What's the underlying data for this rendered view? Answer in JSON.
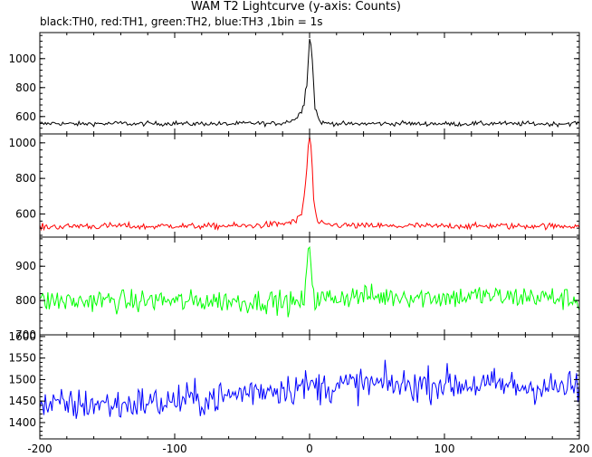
{
  "chart_data": {
    "title": "WAM T2 Lightcurve (y-axis: Counts)",
    "subtitle": "black:TH0, red:TH1, green:TH2, blue:TH3 ,1bin = 1s",
    "type": "line",
    "xlim": [
      -200,
      200
    ],
    "xticks": [
      -200,
      -100,
      0,
      100,
      200
    ],
    "panels": [
      {
        "series": "TH0",
        "color": "#000000",
        "ylim": [
          480,
          1180
        ],
        "yticks": [
          600,
          800,
          1000
        ],
        "x": [
          -200,
          -190,
          -180,
          -170,
          -160,
          -150,
          -140,
          -130,
          -120,
          -110,
          -100,
          -90,
          -80,
          -70,
          -60,
          -50,
          -40,
          -30,
          -20,
          -10,
          -6,
          -4,
          -2,
          -1,
          0,
          1,
          2,
          3,
          4,
          6,
          8,
          10,
          20,
          30,
          40,
          50,
          60,
          70,
          80,
          90,
          100,
          110,
          120,
          130,
          140,
          150,
          160,
          170,
          180,
          190,
          200
        ],
        "y": [
          545,
          555,
          550,
          548,
          552,
          550,
          555,
          548,
          552,
          550,
          555,
          548,
          552,
          550,
          548,
          552,
          555,
          550,
          555,
          585,
          640,
          720,
          820,
          1000,
          1160,
          1100,
          980,
          820,
          680,
          600,
          565,
          555,
          552,
          548,
          550,
          552,
          550,
          555,
          548,
          552,
          550,
          548,
          552,
          550,
          555,
          548,
          552,
          550,
          548,
          552,
          555
        ]
      },
      {
        "series": "TH1",
        "color": "#ff0000",
        "ylim": [
          470,
          1050
        ],
        "yticks": [
          600,
          800,
          1000
        ],
        "x": [
          -200,
          -190,
          -180,
          -170,
          -160,
          -150,
          -140,
          -130,
          -120,
          -110,
          -100,
          -90,
          -80,
          -70,
          -60,
          -50,
          -40,
          -30,
          -20,
          -10,
          -6,
          -4,
          -2,
          -1,
          0,
          1,
          2,
          3,
          4,
          6,
          8,
          10,
          20,
          30,
          40,
          50,
          60,
          70,
          80,
          90,
          100,
          110,
          120,
          130,
          140,
          150,
          160,
          170,
          180,
          190,
          200
        ],
        "y": [
          525,
          530,
          528,
          535,
          530,
          532,
          535,
          530,
          528,
          532,
          535,
          530,
          532,
          530,
          535,
          532,
          535,
          540,
          545,
          560,
          600,
          700,
          850,
          980,
          1040,
          960,
          850,
          700,
          600,
          560,
          545,
          540,
          538,
          535,
          532,
          535,
          530,
          532,
          535,
          530,
          532,
          535,
          530,
          532,
          535,
          530,
          532,
          535,
          530,
          532,
          535
        ]
      },
      {
        "series": "TH2",
        "color": "#00ff00",
        "ylim": [
          700,
          985
        ],
        "yticks": [
          700,
          800,
          900
        ],
        "x": [
          -200,
          -190,
          -180,
          -170,
          -160,
          -150,
          -140,
          -130,
          -120,
          -110,
          -100,
          -90,
          -80,
          -70,
          -60,
          -50,
          -40,
          -30,
          -20,
          -10,
          -4,
          -2,
          -1,
          0,
          1,
          2,
          4,
          10,
          20,
          30,
          40,
          50,
          60,
          70,
          80,
          90,
          100,
          110,
          120,
          130,
          140,
          150,
          160,
          170,
          180,
          190,
          200
        ],
        "y": [
          795,
          800,
          798,
          795,
          802,
          800,
          798,
          795,
          800,
          802,
          798,
          795,
          800,
          798,
          800,
          795,
          798,
          800,
          795,
          790,
          800,
          870,
          940,
          970,
          920,
          860,
          800,
          805,
          810,
          812,
          815,
          810,
          812,
          815,
          810,
          812,
          808,
          810,
          812,
          815,
          810,
          808,
          812,
          810,
          808,
          805,
          800
        ]
      },
      {
        "series": "TH3",
        "color": "#0000ff",
        "ylim": [
          1362,
          1604
        ],
        "yticks": [
          1400,
          1450,
          1500,
          1550,
          1600
        ],
        "x": [
          -200,
          -190,
          -180,
          -170,
          -160,
          -150,
          -140,
          -130,
          -120,
          -110,
          -100,
          -90,
          -80,
          -70,
          -60,
          -50,
          -40,
          -30,
          -20,
          -10,
          0,
          10,
          20,
          30,
          40,
          50,
          60,
          70,
          80,
          90,
          100,
          110,
          120,
          130,
          140,
          150,
          160,
          170,
          180,
          190,
          200
        ],
        "y": [
          1440,
          1438,
          1442,
          1440,
          1445,
          1442,
          1440,
          1445,
          1448,
          1445,
          1450,
          1455,
          1452,
          1458,
          1460,
          1470,
          1475,
          1478,
          1480,
          1482,
          1485,
          1482,
          1485,
          1488,
          1490,
          1488,
          1490,
          1485,
          1488,
          1490,
          1492,
          1488,
          1490,
          1485,
          1488,
          1485,
          1482,
          1485,
          1480,
          1482,
          1480
        ]
      }
    ]
  }
}
